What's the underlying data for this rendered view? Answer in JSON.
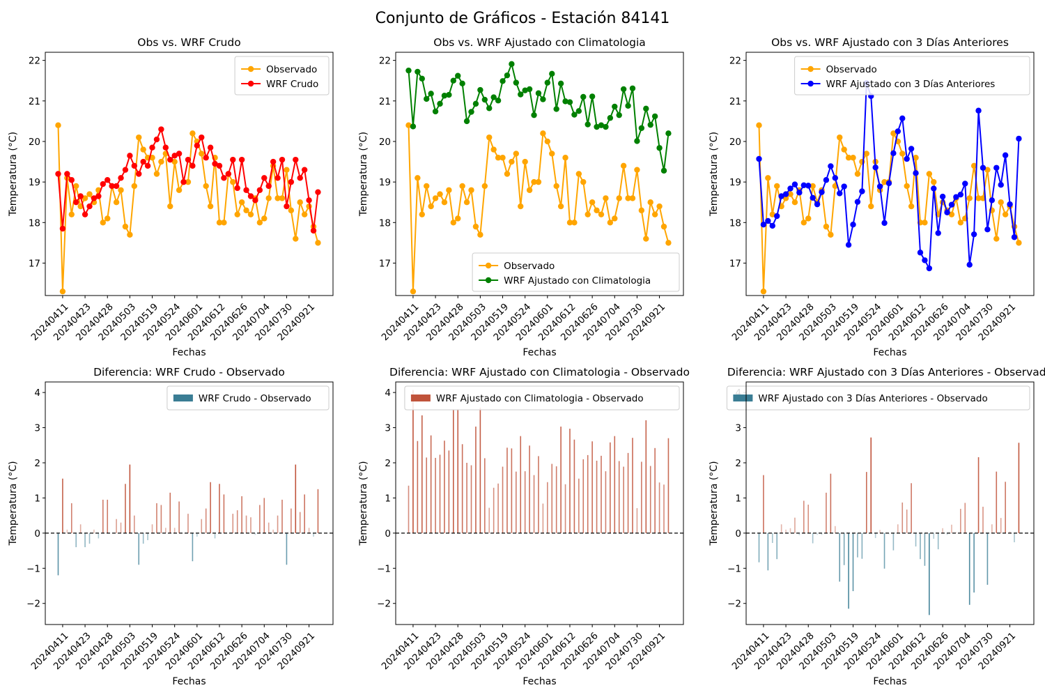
{
  "suptitle": "Conjunto de Gráficos - Estación 84141",
  "x_tick_labels": [
    "20240411",
    "20240423",
    "20240428",
    "20240503",
    "20240519",
    "20240524",
    "20240601",
    "20240612",
    "20240626",
    "20240704",
    "20240730",
    "20240921"
  ],
  "colors": {
    "observado": "#ffa500",
    "crudo": "#ff0000",
    "clima": "#008000",
    "tres_dias": "#0000ff",
    "positive_bar": "#c0533a",
    "negative_bar": "#3a7d94",
    "zero_line": "#000000",
    "axes": "#000000"
  },
  "chart_data": [
    {
      "type": "line",
      "title": "Obs vs. WRF Crudo",
      "xlabel": "Fechas",
      "ylabel": "Temperatura (°C)",
      "ylim": [
        16.2,
        22.2
      ],
      "yticks": [
        17,
        18,
        19,
        20,
        21,
        22
      ],
      "legend_position": "upper right",
      "series": [
        {
          "name": "Observado",
          "color": "#ffa500",
          "values": [
            20.4,
            16.3,
            19.1,
            18.2,
            18.9,
            18.4,
            18.6,
            18.7,
            18.5,
            18.8,
            18.0,
            18.1,
            18.9,
            18.5,
            18.8,
            17.9,
            17.7,
            18.9,
            20.1,
            19.8,
            19.6,
            19.6,
            19.2,
            19.5,
            19.7,
            18.4,
            19.5,
            18.8,
            19.0,
            19.0,
            20.2,
            20.0,
            19.7,
            18.9,
            18.4,
            19.6,
            18.0,
            18.0,
            19.2,
            19.0,
            18.2,
            18.5,
            18.3,
            18.2,
            18.6,
            18.0,
            18.1,
            18.6,
            19.4,
            18.6,
            18.6,
            19.3,
            18.3,
            17.6,
            18.5,
            18.2,
            18.4,
            17.9,
            17.5
          ]
        },
        {
          "name": "WRF Crudo",
          "color": "#ff0000",
          "values": [
            19.2,
            17.85,
            19.2,
            19.05,
            18.5,
            18.65,
            18.2,
            18.4,
            18.6,
            18.65,
            18.95,
            19.05,
            18.9,
            18.9,
            19.1,
            19.3,
            19.65,
            19.4,
            19.2,
            19.5,
            19.4,
            19.85,
            20.05,
            20.3,
            19.85,
            19.55,
            19.65,
            19.7,
            19.0,
            19.55,
            19.4,
            19.9,
            20.1,
            19.6,
            19.85,
            19.45,
            19.4,
            19.1,
            19.2,
            19.55,
            18.85,
            19.55,
            18.8,
            18.65,
            18.55,
            18.8,
            19.1,
            18.9,
            19.5,
            19.1,
            19.55,
            18.4,
            19.0,
            19.55,
            19.1,
            19.3,
            18.55,
            17.8,
            18.75
          ]
        }
      ]
    },
    {
      "type": "line",
      "title": "Obs vs. WRF Ajustado con Climatologia",
      "xlabel": "Fechas",
      "ylabel": "Temperatura (°C)",
      "ylim": [
        16.2,
        22.2
      ],
      "yticks": [
        17,
        18,
        19,
        20,
        21,
        22
      ],
      "legend_position": "lower right",
      "series": [
        {
          "name": "Observado",
          "color": "#ffa500",
          "values": [
            20.4,
            16.3,
            19.1,
            18.2,
            18.9,
            18.4,
            18.6,
            18.7,
            18.5,
            18.8,
            18.0,
            18.1,
            18.9,
            18.5,
            18.8,
            17.9,
            17.7,
            18.9,
            20.1,
            19.8,
            19.6,
            19.6,
            19.2,
            19.5,
            19.7,
            18.4,
            19.5,
            18.8,
            19.0,
            19.0,
            20.2,
            20.0,
            19.7,
            18.9,
            18.4,
            19.6,
            18.0,
            18.0,
            19.2,
            19.0,
            18.2,
            18.5,
            18.3,
            18.2,
            18.6,
            18.0,
            18.1,
            18.6,
            19.4,
            18.6,
            18.6,
            19.3,
            18.3,
            17.6,
            18.5,
            18.2,
            18.4,
            17.9,
            17.5
          ]
        },
        {
          "name": "WRF Ajustado con Climatologia",
          "color": "#008000",
          "values": [
            21.75,
            20.37,
            21.72,
            21.55,
            21.05,
            21.18,
            20.74,
            20.93,
            21.13,
            21.15,
            21.5,
            21.62,
            21.43,
            20.5,
            20.73,
            20.93,
            21.27,
            21.03,
            20.82,
            21.09,
            21.01,
            21.49,
            21.63,
            21.91,
            21.45,
            21.16,
            21.26,
            21.29,
            20.65,
            21.19,
            21.04,
            21.45,
            21.67,
            20.8,
            21.43,
            20.99,
            20.97,
            20.66,
            20.75,
            21.1,
            20.42,
            21.11,
            20.36,
            20.4,
            20.36,
            20.58,
            20.86,
            20.65,
            21.29,
            20.88,
            21.31,
            20.01,
            20.33,
            20.81,
            20.41,
            20.62,
            19.84,
            19.28,
            20.2
          ]
        }
      ]
    },
    {
      "type": "line",
      "title": "Obs vs. WRF Ajustado con 3 Días Anteriores",
      "xlabel": "Fechas",
      "ylabel": "Temperatura (°C)",
      "ylim": [
        16.2,
        22.2
      ],
      "yticks": [
        17,
        18,
        19,
        20,
        21,
        22
      ],
      "legend_position": "upper right",
      "series": [
        {
          "name": "Observado",
          "color": "#ffa500",
          "values": [
            20.4,
            16.3,
            19.1,
            18.2,
            18.9,
            18.4,
            18.6,
            18.7,
            18.5,
            18.8,
            18.0,
            18.1,
            18.9,
            18.5,
            18.8,
            17.9,
            17.7,
            18.9,
            20.1,
            19.8,
            19.6,
            19.6,
            19.2,
            19.5,
            19.7,
            18.4,
            19.5,
            18.8,
            19.0,
            19.0,
            20.2,
            20.0,
            19.7,
            18.9,
            18.4,
            19.6,
            18.0,
            18.0,
            19.2,
            19.0,
            18.2,
            18.5,
            18.3,
            18.2,
            18.6,
            18.0,
            18.1,
            18.6,
            19.4,
            18.6,
            18.6,
            19.3,
            18.3,
            17.6,
            18.5,
            18.2,
            18.4,
            17.9,
            17.5
          ]
        },
        {
          "name": "WRF Ajustado con 3 Días Anteriores",
          "color": "#0000ff",
          "values": [
            19.57,
            17.95,
            18.04,
            17.92,
            18.16,
            18.65,
            18.7,
            18.84,
            18.94,
            18.74,
            18.92,
            18.91,
            18.61,
            18.45,
            18.75,
            19.05,
            19.39,
            19.1,
            18.72,
            18.89,
            17.45,
            17.95,
            18.51,
            18.77,
            21.44,
            21.12,
            19.36,
            18.89,
            17.99,
            18.97,
            19.71,
            20.25,
            20.57,
            19.57,
            19.82,
            19.22,
            17.26,
            17.07,
            16.87,
            18.84,
            17.74,
            18.64,
            18.25,
            18.44,
            18.63,
            18.69,
            18.96,
            16.96,
            17.71,
            20.76,
            19.35,
            17.83,
            18.55,
            19.35,
            18.93,
            19.66,
            18.45,
            17.64,
            20.07
          ]
        }
      ]
    },
    {
      "type": "bar",
      "title": "Diferencia: WRF Crudo - Observado",
      "xlabel": "Fechas",
      "ylabel": "Temperatura (°C)",
      "ylim": [
        -2.6,
        4.3
      ],
      "yticks": [
        -2,
        -1,
        0,
        1,
        2,
        3,
        4
      ],
      "legend_position": "upper right",
      "series": [
        {
          "name": "WRF Crudo - Observado",
          "values": [
            -1.2,
            1.55,
            0.1,
            0.85,
            -0.4,
            0.25,
            -0.4,
            -0.3,
            0.1,
            -0.15,
            0.95,
            0.95,
            0.0,
            0.4,
            0.3,
            1.4,
            1.95,
            0.5,
            -0.9,
            -0.3,
            -0.2,
            0.25,
            0.85,
            0.8,
            0.15,
            1.15,
            0.15,
            0.9,
            0.0,
            0.55,
            -0.8,
            -0.1,
            0.4,
            0.7,
            1.45,
            -0.15,
            1.4,
            1.1,
            0.0,
            0.55,
            0.65,
            1.05,
            0.5,
            0.45,
            -0.05,
            0.8,
            1.0,
            0.3,
            0.1,
            0.5,
            0.95,
            -0.9,
            0.7,
            1.95,
            0.6,
            1.1,
            0.15,
            -0.1,
            1.25
          ]
        }
      ]
    },
    {
      "type": "bar",
      "title": "Diferencia: WRF Ajustado con Climatologia - Observado",
      "xlabel": "Fechas",
      "ylabel": "Temperatura (°C)",
      "ylim": [
        -2.6,
        4.3
      ],
      "yticks": [
        -2,
        -1,
        0,
        1,
        2,
        3,
        4
      ],
      "legend_position": "upper right",
      "series": [
        {
          "name": "WRF Ajustado con Climatologia - Observado",
          "values": [
            1.35,
            4.07,
            2.62,
            3.35,
            2.15,
            2.78,
            2.14,
            2.23,
            2.63,
            2.35,
            3.5,
            3.52,
            2.53,
            2.0,
            1.93,
            3.03,
            3.57,
            2.13,
            0.72,
            1.29,
            1.41,
            1.89,
            2.43,
            2.41,
            1.75,
            2.76,
            1.76,
            2.49,
            1.65,
            2.19,
            0.84,
            1.45,
            1.97,
            1.9,
            3.03,
            1.39,
            2.97,
            2.66,
            1.55,
            2.1,
            2.22,
            2.61,
            2.06,
            2.2,
            1.76,
            2.58,
            2.76,
            2.05,
            1.89,
            2.28,
            2.71,
            0.71,
            2.03,
            3.21,
            1.91,
            2.42,
            1.44,
            1.38,
            2.7
          ]
        }
      ]
    },
    {
      "type": "bar",
      "title": "Diferencia: WRF Ajustado con 3 Días Anteriores - Observado",
      "xlabel": "Fechas",
      "ylabel": "Temperatura (°C)",
      "ylim": [
        -2.6,
        4.3
      ],
      "yticks": [
        -2,
        -1,
        0,
        1,
        2,
        3,
        4
      ],
      "legend_position": "upper right",
      "series": [
        {
          "name": "WRF Ajustado con 3 Días Anteriores - Observado",
          "values": [
            -0.83,
            1.65,
            -1.06,
            -0.28,
            -0.74,
            0.25,
            0.1,
            0.14,
            0.44,
            -0.06,
            0.92,
            0.81,
            -0.29,
            -0.05,
            -0.05,
            1.15,
            1.69,
            0.2,
            -1.38,
            -0.91,
            -2.15,
            -1.65,
            -0.69,
            -0.73,
            1.74,
            2.72,
            -0.14,
            0.09,
            -1.01,
            -0.03,
            -0.49,
            0.25,
            0.87,
            0.67,
            1.42,
            -0.38,
            -0.74,
            -0.93,
            -2.33,
            -0.16,
            -0.46,
            0.14,
            -0.05,
            0.24,
            0.03,
            0.69,
            0.86,
            -2.04,
            -1.69,
            2.16,
            0.75,
            -1.47,
            0.25,
            1.75,
            0.43,
            1.46,
            0.05,
            -0.26,
            2.57
          ]
        }
      ]
    }
  ]
}
